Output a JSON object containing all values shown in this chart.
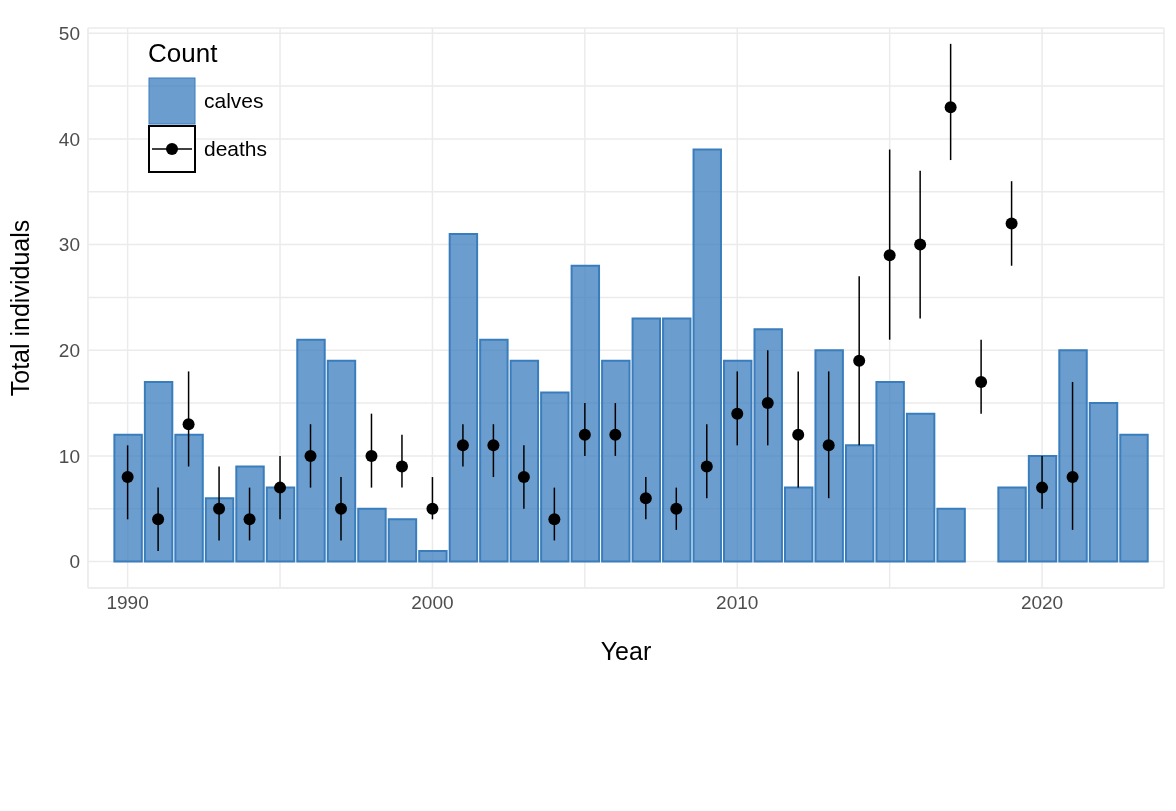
{
  "chart_data": {
    "type": "bar",
    "xlabel": "Year",
    "ylabel": "Total individuals",
    "legend_title": "Count",
    "x": [
      1990,
      1991,
      1992,
      1993,
      1994,
      1995,
      1996,
      1997,
      1998,
      1999,
      2000,
      2001,
      2002,
      2003,
      2004,
      2005,
      2006,
      2007,
      2008,
      2009,
      2010,
      2011,
      2012,
      2013,
      2014,
      2015,
      2016,
      2017,
      2018,
      2019,
      2020,
      2021,
      2022,
      2023
    ],
    "series": [
      {
        "name": "calves",
        "color": "#3a7dbd",
        "values": [
          12,
          17,
          12,
          6,
          9,
          7,
          21,
          19,
          5,
          4,
          1,
          31,
          21,
          19,
          16,
          28,
          19,
          23,
          23,
          39,
          19,
          22,
          7,
          20,
          11,
          17,
          14,
          5,
          0,
          7,
          10,
          20,
          15,
          12
        ]
      },
      {
        "name": "deaths",
        "type": "scatter",
        "color": "#000000",
        "marker": "circle",
        "values": [
          8,
          4,
          13,
          5,
          4,
          7,
          10,
          5,
          10,
          9,
          5,
          11,
          11,
          8,
          4,
          12,
          12,
          6,
          5,
          9,
          14,
          15,
          12,
          11,
          19,
          29,
          30,
          43,
          17,
          32,
          7,
          8,
          null,
          null
        ],
        "errors": [
          [
            4,
            11
          ],
          [
            1,
            7
          ],
          [
            9,
            18
          ],
          [
            2,
            9
          ],
          [
            2,
            7
          ],
          [
            4,
            10
          ],
          [
            7,
            13
          ],
          [
            2,
            8
          ],
          [
            7,
            14
          ],
          [
            7,
            12
          ],
          [
            4,
            8
          ],
          [
            9,
            13
          ],
          [
            8,
            13
          ],
          [
            5,
            11
          ],
          [
            2,
            7
          ],
          [
            10,
            15
          ],
          [
            10,
            15
          ],
          [
            4,
            8
          ],
          [
            3,
            7
          ],
          [
            6,
            13
          ],
          [
            11,
            18
          ],
          [
            11,
            20
          ],
          [
            7,
            18
          ],
          [
            6,
            18
          ],
          [
            11,
            27
          ],
          [
            21,
            39
          ],
          [
            23,
            37
          ],
          [
            38,
            49
          ],
          [
            14,
            21
          ],
          [
            28,
            36
          ],
          [
            5,
            10
          ],
          [
            3,
            17
          ],
          null,
          null
        ]
      }
    ],
    "xlim": [
      1988.7,
      2024
    ],
    "xticks": [
      1990,
      {
        "value": 1995,
        "label": null
      },
      2000,
      {
        "value": 2005,
        "label": null
      },
      2010,
      {
        "value": 2015,
        "label": null
      },
      2020
    ],
    "ylim": [
      -2.5,
      50.5
    ],
    "yticks": [
      0,
      {
        "value": 5,
        "label": null
      },
      10,
      {
        "value": 15,
        "label": null
      },
      20,
      {
        "value": 25,
        "label": null
      },
      30,
      {
        "value": 35,
        "label": null
      },
      40,
      {
        "value": 45,
        "label": null
      },
      50
    ],
    "grid": true,
    "legend": "top left"
  }
}
